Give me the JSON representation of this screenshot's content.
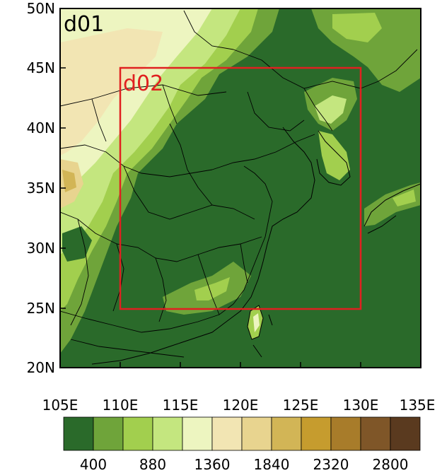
{
  "labels": {
    "panel_outer": "d01",
    "panel_inner": "d02"
  },
  "axes": {
    "x_ticks": [
      "105E",
      "110E",
      "115E",
      "120E",
      "125E",
      "130E",
      "135E"
    ],
    "y_ticks": [
      "50N",
      "45N",
      "40N",
      "35N",
      "30N",
      "25N",
      "20N"
    ]
  },
  "colorbar": {
    "colors": [
      "#2a6a2a",
      "#6fa43a",
      "#a2cf4e",
      "#c4e67f",
      "#edf5c0",
      "#f2e5b3",
      "#e8d48f",
      "#d2b556",
      "#c69c2e",
      "#a87c2a",
      "#7f5628",
      "#5a3a1f"
    ],
    "tick_labels": [
      "400",
      "880",
      "1360",
      "1840",
      "2320",
      "2800"
    ]
  },
  "colors": {
    "domain_box": "#e02020",
    "frame": "#000000",
    "lowland": "#2a6a2a"
  },
  "chart_data": {
    "type": "map",
    "lon_range": [
      105,
      135
    ],
    "lat_range": [
      20,
      50
    ],
    "boxes": [
      {
        "name": "d02",
        "lon": [
          110,
          130
        ],
        "lat": [
          25,
          45
        ]
      }
    ]
  }
}
